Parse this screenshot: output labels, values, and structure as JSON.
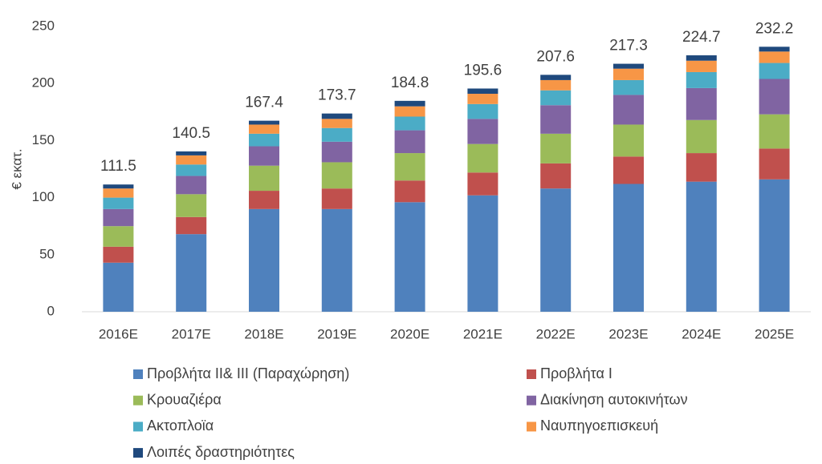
{
  "chart_data": {
    "type": "stacked_bar",
    "y_label": "€ εκατ.",
    "categories": [
      "2016E",
      "2017E",
      "2018E",
      "2019E",
      "2020E",
      "2021E",
      "2022E",
      "2023E",
      "2024E",
      "2025E"
    ],
    "series": [
      {
        "name": "Προβλήτα ΙΙ& ΙΙΙ (Παραχώρηση)",
        "color": "#4f81bd",
        "values": [
          43,
          68,
          90,
          90,
          96,
          102,
          108,
          112,
          114,
          116
        ]
      },
      {
        "name": "Προβλήτα Ι",
        "color": "#c0504d",
        "values": [
          14,
          15,
          16,
          18,
          19,
          20,
          22,
          24,
          25,
          27
        ]
      },
      {
        "name": "Κρουαζιέρα",
        "color": "#9bbb59",
        "values": [
          18,
          20,
          22,
          23,
          24,
          25,
          26,
          28,
          29,
          30
        ]
      },
      {
        "name": "Διακίνηση αυτοκινήτων",
        "color": "#8064a2",
        "values": [
          15,
          16,
          17,
          18,
          20,
          22,
          25,
          26,
          28,
          31
        ]
      },
      {
        "name": "Ακτοπλοϊα",
        "color": "#4bacc6",
        "values": [
          10,
          10,
          11,
          12,
          12,
          13,
          13,
          13,
          14,
          14
        ]
      },
      {
        "name": "Ναυπηγοεπισκευή",
        "color": "#f79646",
        "values": [
          8,
          8,
          8,
          8,
          9,
          9,
          9,
          10,
          10,
          10
        ]
      },
      {
        "name": "Λοιπές δραστηριότητες",
        "color": "#1f497d",
        "values": [
          3.5,
          3.5,
          3.4,
          4.7,
          4.8,
          4.6,
          4.6,
          4.3,
          4.7,
          4.2
        ]
      }
    ],
    "totals": [
      111.5,
      140.5,
      167.4,
      173.7,
      184.8,
      195.6,
      207.6,
      217.3,
      224.7,
      232.2
    ],
    "ylim": [
      0,
      250
    ],
    "yticks": [
      0,
      50,
      100,
      150,
      200,
      250
    ],
    "grid": false
  }
}
